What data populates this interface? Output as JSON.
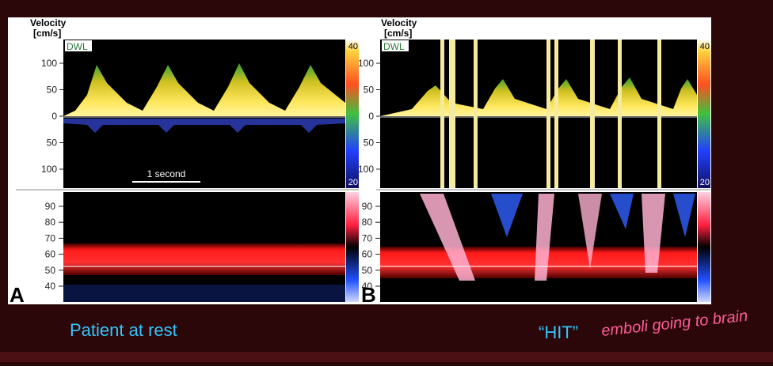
{
  "panels": [
    {
      "label": "A",
      "axis_title": "Velocity",
      "axis_unit": "[cm/s]",
      "logo": "DWL",
      "velocity_ticks": [
        100,
        50,
        0,
        50,
        100
      ],
      "colorbar_top": "40",
      "colorbar_bottom": "20",
      "scale_bar": "1 second",
      "depth_ticks": [
        90,
        80,
        70,
        60,
        50,
        40
      ]
    },
    {
      "label": "B",
      "axis_title": "Velocity",
      "axis_unit": "[cm/s]",
      "logo": "DWL",
      "velocity_ticks": [
        100,
        50,
        0,
        50,
        100
      ],
      "colorbar_top": "40",
      "colorbar_bottom": "20",
      "depth_ticks": [
        90,
        80,
        70,
        60,
        50,
        40
      ]
    }
  ],
  "caption_left": "Patient at rest",
  "caption_right": "“HIT”",
  "handwritten_note": "emboli going to brain"
}
